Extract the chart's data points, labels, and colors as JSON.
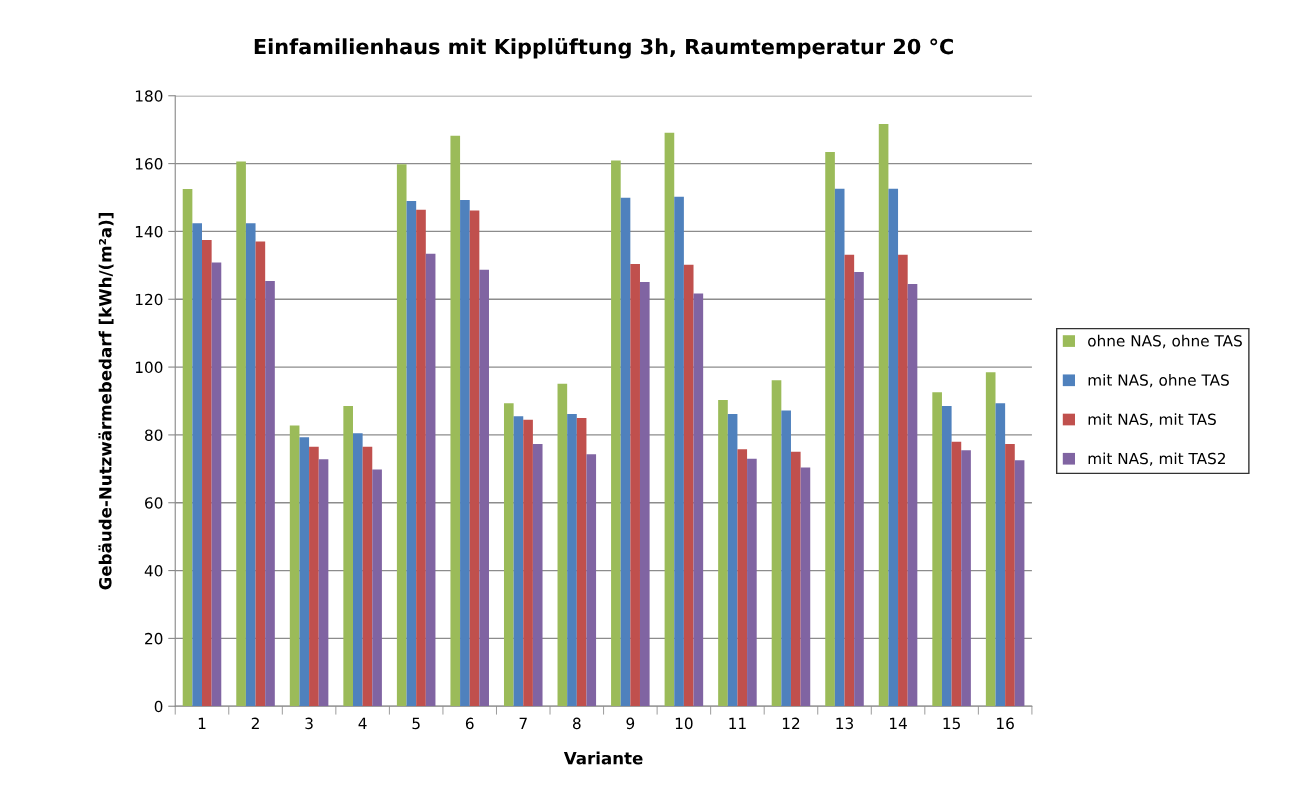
{
  "chart_data": {
    "type": "bar",
    "title": "Einfamilienhaus mit Kipplüftung 3h, Raumtemperatur 20 °C",
    "xlabel": "Variante",
    "ylabel": "Gebäude-Nutzwärmebedarf [kWh/(m²a)]",
    "categories": [
      "1",
      "2",
      "3",
      "4",
      "5",
      "6",
      "7",
      "8",
      "9",
      "10",
      "11",
      "12",
      "13",
      "14",
      "15",
      "16"
    ],
    "series": [
      {
        "name": "ohne NAS, ohne TAS",
        "color": "#9bbb59",
        "values": [
          152.5,
          160.6,
          82.8,
          88.5,
          159.8,
          168.2,
          89.3,
          95.1,
          160.9,
          169.1,
          90.3,
          96.1,
          163.4,
          171.7,
          92.6,
          98.5
        ]
      },
      {
        "name": "mit NAS, ohne TAS",
        "color": "#4f81bd",
        "values": [
          142.4,
          142.4,
          79.3,
          80.5,
          149.0,
          149.3,
          85.5,
          86.2,
          149.9,
          150.2,
          86.2,
          87.2,
          152.6,
          152.6,
          88.5,
          89.3
        ]
      },
      {
        "name": "mit NAS, mit TAS",
        "color": "#c0504d",
        "values": [
          137.5,
          137.0,
          76.5,
          76.5,
          146.4,
          146.2,
          84.5,
          85.0,
          130.4,
          130.2,
          75.8,
          75.0,
          133.1,
          133.1,
          78.0,
          77.3
        ]
      },
      {
        "name": "mit NAS, mit TAS2",
        "color": "#8064a2",
        "values": [
          130.8,
          125.4,
          72.8,
          69.8,
          133.4,
          128.7,
          77.3,
          74.3,
          125.1,
          121.7,
          73.0,
          70.4,
          128.0,
          124.5,
          75.5,
          72.5
        ]
      }
    ],
    "ylim": [
      0,
      180
    ],
    "yticks": [
      0,
      20,
      40,
      60,
      80,
      100,
      120,
      140,
      160,
      180
    ],
    "grid": "y",
    "legend": "right"
  }
}
